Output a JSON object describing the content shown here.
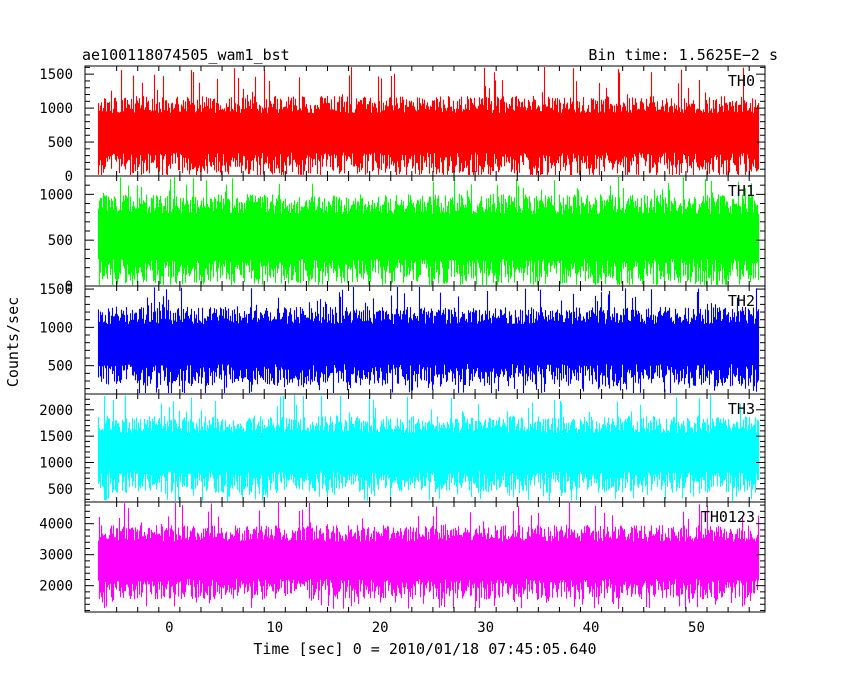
{
  "header": {
    "title": "ae100118074505_wam1_bst",
    "bin_time": "Bin time: 1.5625E−2 s"
  },
  "chart_data": {
    "type": "line",
    "title": "ae100118074505_wam1_bst",
    "xlabel": "Time [sec] 0 = 2010/01/18 07:45:05.640",
    "ylabel": "Counts/sec",
    "xlim": [
      -8,
      56.5
    ],
    "x_data_range": [
      -6.8,
      55.9
    ],
    "xticks": [
      0,
      10,
      20,
      30,
      40,
      50
    ],
    "xtick_labels": [
      "0",
      "10",
      "20",
      "30",
      "40",
      "50"
    ],
    "grid": false,
    "panels": [
      {
        "name": "TH0",
        "color": "#ff0000",
        "ylim": [
          0,
          1620
        ],
        "yticks": [
          0,
          500,
          1000,
          1500
        ],
        "ytick_labels": [
          "0",
          "500",
          "1000",
          "1500"
        ],
        "band_low": 20,
        "band_high": 1180,
        "spike_min": 0,
        "spike_max": 1620
      },
      {
        "name": "TH1",
        "color": "#00ff00",
        "ylim": [
          0,
          1200
        ],
        "yticks": [
          0,
          500,
          1000
        ],
        "ytick_labels": [
          "0",
          "500",
          "1000"
        ],
        "band_low": 20,
        "band_high": 1000,
        "spike_min": 0,
        "spike_max": 1200
      },
      {
        "name": "TH2",
        "color": "#0000ff",
        "ylim": [
          130,
          1540
        ],
        "yticks": [
          500,
          1000,
          1500
        ],
        "ytick_labels": [
          "500",
          "1000",
          "1500"
        ],
        "band_low": 230,
        "band_high": 1270,
        "spike_min": 130,
        "spike_max": 1540
      },
      {
        "name": "TH3",
        "color": "#00ffff",
        "ylim": [
          250,
          2300
        ],
        "yticks": [
          500,
          1000,
          1500,
          2000
        ],
        "ytick_labels": [
          "500",
          "1000",
          "1500",
          "2000"
        ],
        "band_low": 420,
        "band_high": 1880,
        "spike_min": 250,
        "spike_max": 2300
      },
      {
        "name": "TH0123",
        "color": "#ff00ff",
        "ylim": [
          1150,
          4700
        ],
        "yticks": [
          2000,
          3000,
          4000
        ],
        "ytick_labels": [
          "2000",
          "3000",
          "4000"
        ],
        "band_low": 1550,
        "band_high": 3950,
        "spike_min": 1250,
        "spike_max": 4700
      }
    ]
  }
}
